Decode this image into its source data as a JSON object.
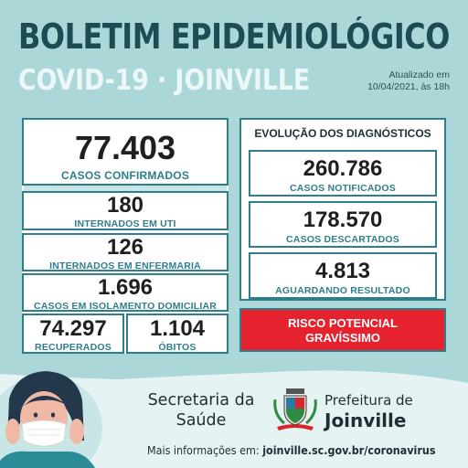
{
  "header": {
    "title": "BOLETIM EPIDEMIOLÓGICO",
    "subtitle": "COVID-19 · JOINVILLE",
    "updated_line1": "Atualizado em",
    "updated_line2": "10/04/2021, às 18h"
  },
  "cases": {
    "confirmed": {
      "value": "77.403",
      "label": "CASOS CONFIRMADOS"
    },
    "icu": {
      "value": "180",
      "label": "INTERNADOS EM UTI"
    },
    "ward": {
      "value": "126",
      "label": "INTERNADOS EM ENFERMARIA"
    },
    "home_isolation": {
      "value": "1.696",
      "label": "CASOS EM ISOLAMENTO DOMICILIAR"
    },
    "recovered": {
      "value": "74.297",
      "label": "RECUPERADOS"
    },
    "deaths": {
      "value": "1.104",
      "label": "ÓBITOS"
    }
  },
  "diagnostics": {
    "title": "EVOLUÇÃO DOS DIAGNÓSTICOS",
    "notified": {
      "value": "260.786",
      "label": "CASOS NOTIFICADOS"
    },
    "discarded": {
      "value": "178.570",
      "label": "CASOS DESCARTADOS"
    },
    "pending": {
      "value": "4.813",
      "label": "AGUARDANDO RESULTADO"
    }
  },
  "risk": {
    "line1": "RISCO POTENCIAL",
    "line2": "GRAVÍSSIMO"
  },
  "footer": {
    "secretaria_line1": "Secretaria da",
    "secretaria_line2": "Saúde",
    "prefeitura_line1": "Prefeitura de",
    "prefeitura_line2": "Joinville",
    "more_prefix": "Mais informações em: ",
    "more_link": "joinville.sc.gov.br/coronavirus"
  },
  "colors": {
    "background": "#abd7d9",
    "title": "#1e4c55",
    "accent": "#2f7e8c",
    "risk": "#e5222e"
  }
}
